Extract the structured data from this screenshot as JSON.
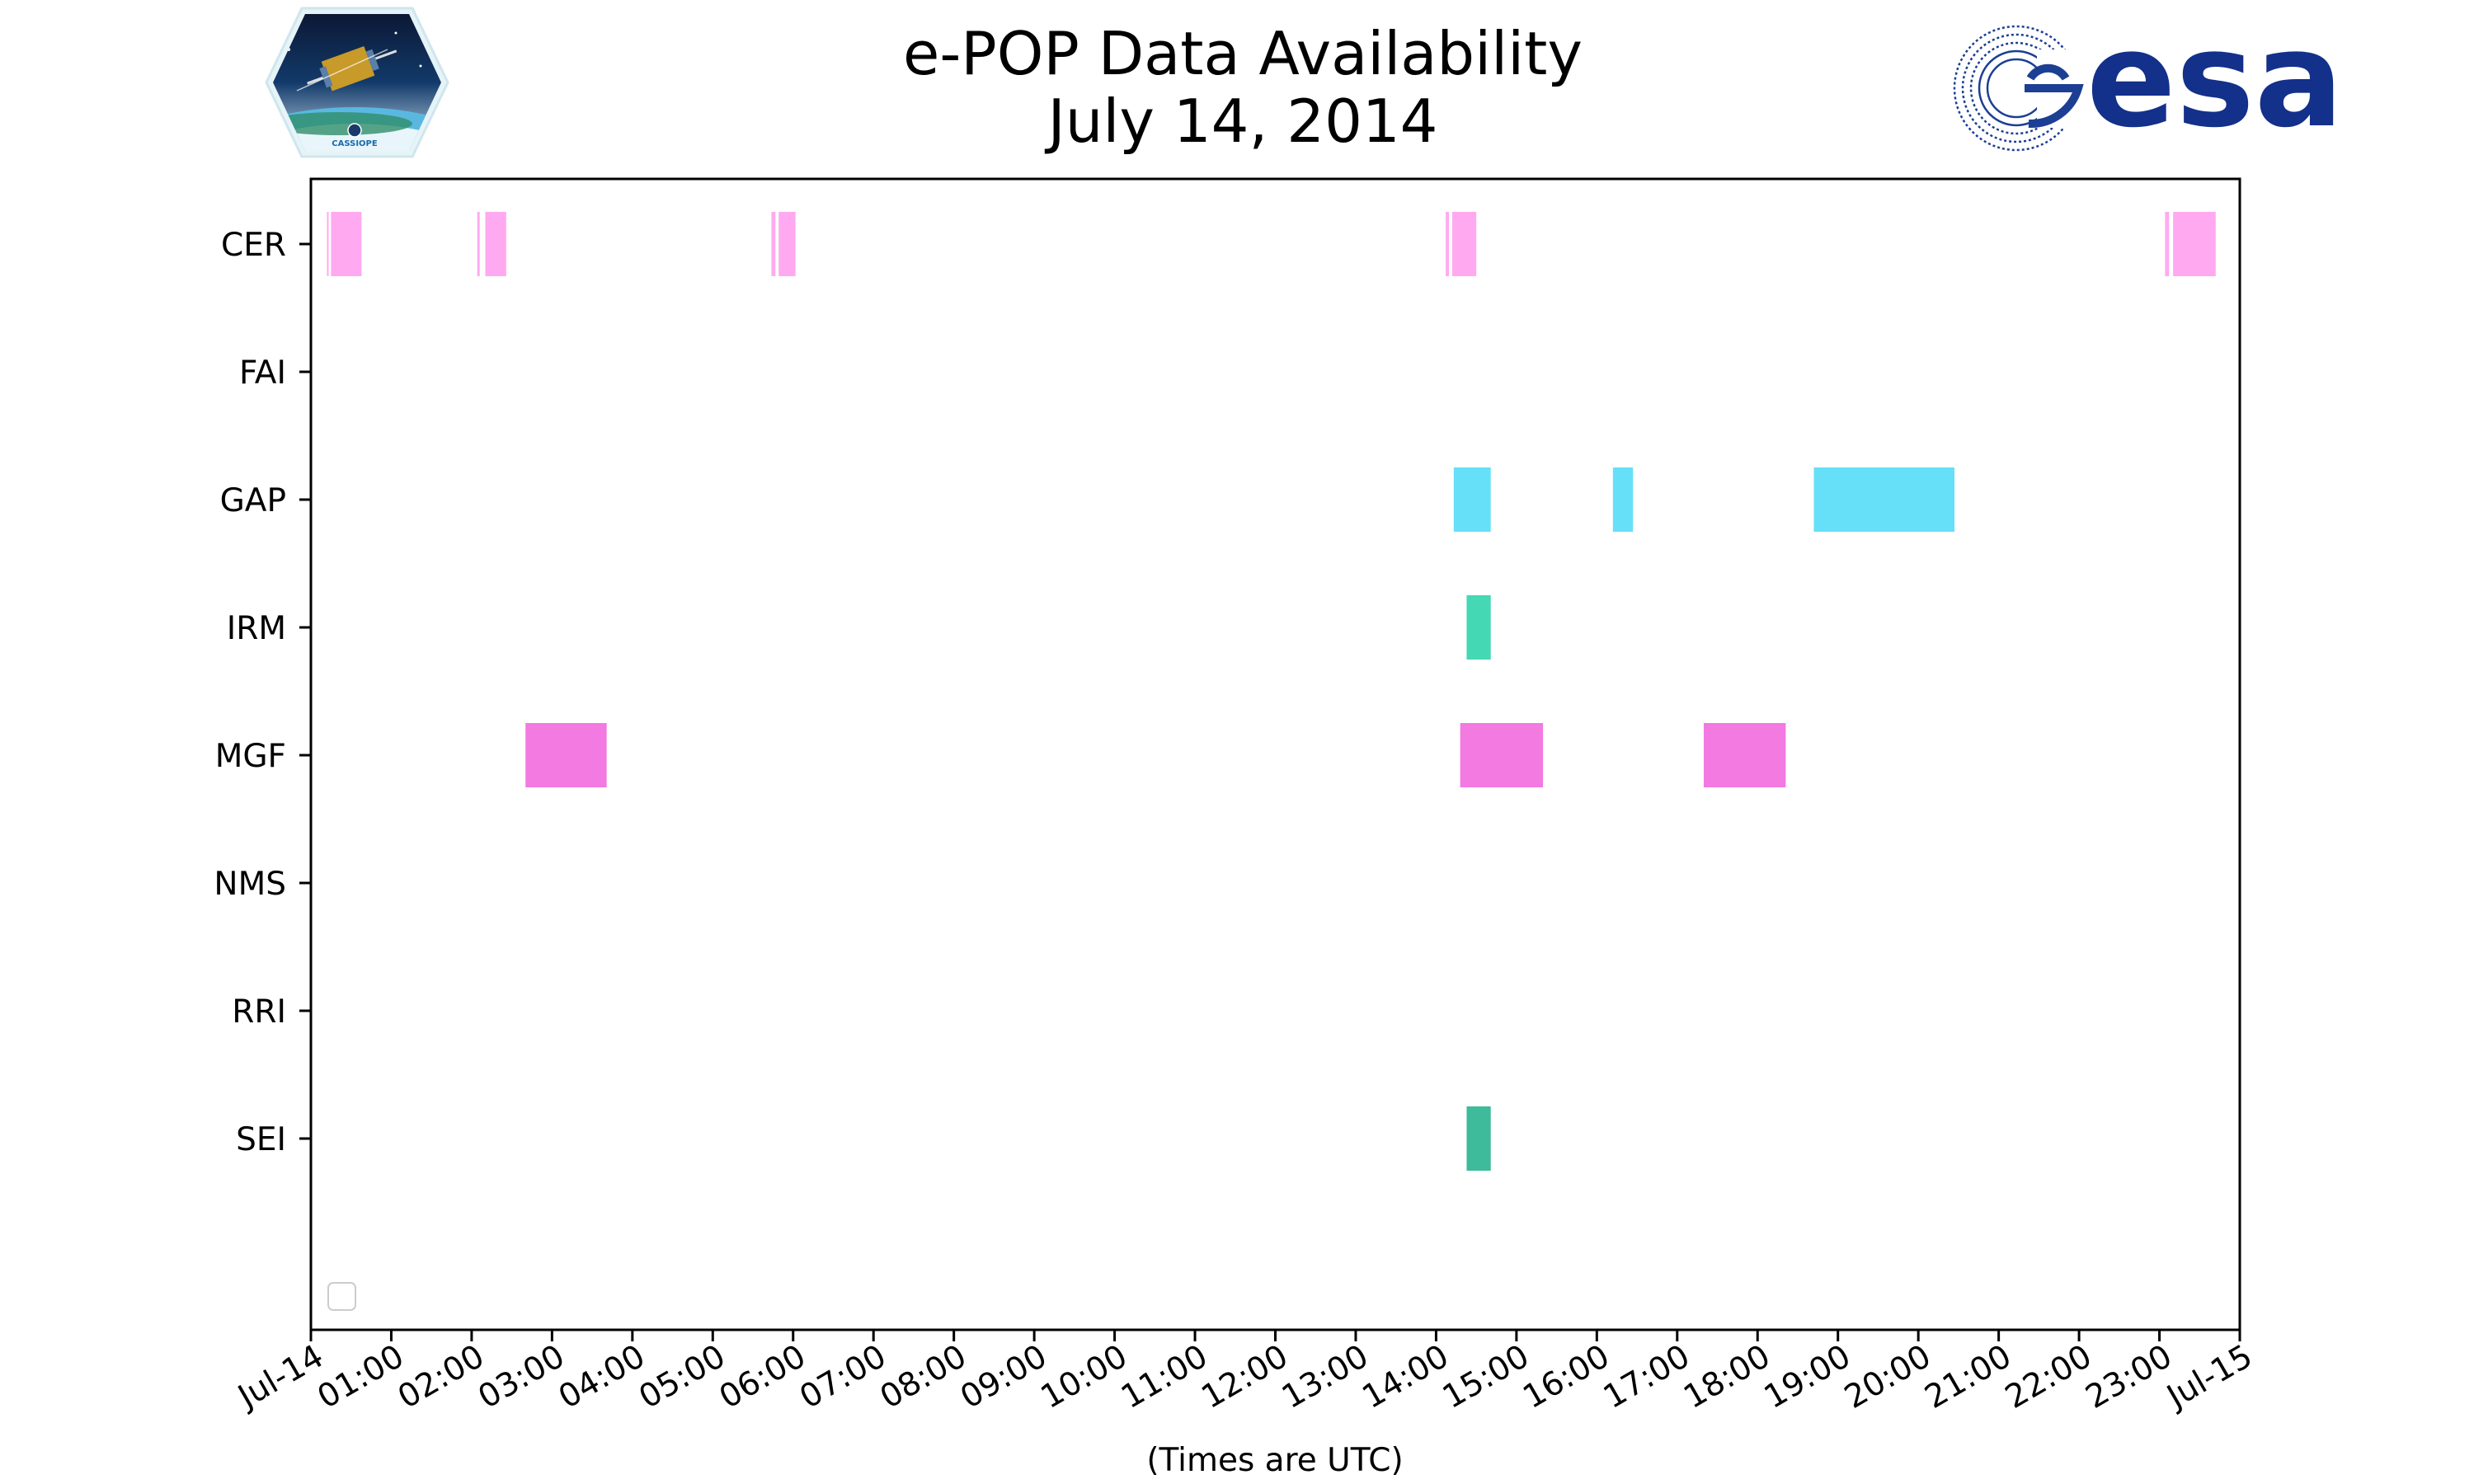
{
  "title_line1": "e-POP Data Availability",
  "title_line2": "July 14, 2014",
  "logos": {
    "left_logo_icon": "cassiope-mission-logo",
    "left_logo_text": "CASSIOPE",
    "right_logo_icon": "esa-logo",
    "right_logo_text": "esa"
  },
  "chart_data": {
    "type": "timeline",
    "xlabel": "(Times are UTC)",
    "ylabel": "",
    "x_range_hours": [
      0,
      24
    ],
    "x_ticks": [
      {
        "hour": 0,
        "label": "Jul-14"
      },
      {
        "hour": 1,
        "label": "01:00"
      },
      {
        "hour": 2,
        "label": "02:00"
      },
      {
        "hour": 3,
        "label": "03:00"
      },
      {
        "hour": 4,
        "label": "04:00"
      },
      {
        "hour": 5,
        "label": "05:00"
      },
      {
        "hour": 6,
        "label": "06:00"
      },
      {
        "hour": 7,
        "label": "07:00"
      },
      {
        "hour": 8,
        "label": "08:00"
      },
      {
        "hour": 9,
        "label": "09:00"
      },
      {
        "hour": 10,
        "label": "10:00"
      },
      {
        "hour": 11,
        "label": "11:00"
      },
      {
        "hour": 12,
        "label": "12:00"
      },
      {
        "hour": 13,
        "label": "13:00"
      },
      {
        "hour": 14,
        "label": "14:00"
      },
      {
        "hour": 15,
        "label": "15:00"
      },
      {
        "hour": 16,
        "label": "16:00"
      },
      {
        "hour": 17,
        "label": "17:00"
      },
      {
        "hour": 18,
        "label": "18:00"
      },
      {
        "hour": 19,
        "label": "19:00"
      },
      {
        "hour": 20,
        "label": "20:00"
      },
      {
        "hour": 21,
        "label": "21:00"
      },
      {
        "hour": 22,
        "label": "22:00"
      },
      {
        "hour": 23,
        "label": "23:00"
      },
      {
        "hour": 24,
        "label": "Jul-15"
      }
    ],
    "instruments": [
      {
        "label": "CER",
        "color": "#ffaaf0",
        "intervals": [
          [
            0.2,
            0.22
          ],
          [
            0.25,
            0.63
          ],
          [
            2.07,
            2.1
          ],
          [
            2.17,
            2.43
          ],
          [
            5.73,
            5.78
          ],
          [
            5.82,
            6.03
          ],
          [
            14.12,
            14.16
          ],
          [
            14.2,
            14.5
          ],
          [
            23.07,
            23.12
          ],
          [
            23.17,
            23.7
          ]
        ]
      },
      {
        "label": "FAI",
        "color": "#cccccc",
        "intervals": []
      },
      {
        "label": "GAP",
        "color": "#66e0f8",
        "intervals": [
          [
            14.22,
            14.68
          ],
          [
            16.2,
            16.45
          ],
          [
            18.7,
            20.45
          ]
        ]
      },
      {
        "label": "IRM",
        "color": "#44d8b4",
        "intervals": [
          [
            14.38,
            14.68
          ]
        ]
      },
      {
        "label": "MGF",
        "color": "#f27ae0",
        "intervals": [
          [
            2.67,
            3.68
          ],
          [
            14.3,
            15.33
          ],
          [
            17.33,
            18.35
          ]
        ]
      },
      {
        "label": "NMS",
        "color": "#cccccc",
        "intervals": []
      },
      {
        "label": "RRI",
        "color": "#cccccc",
        "intervals": []
      },
      {
        "label": "SEI",
        "color": "#3dbb9a",
        "intervals": [
          [
            14.38,
            14.68
          ]
        ]
      }
    ],
    "legend_position": "lower-left",
    "legend_entries": []
  }
}
